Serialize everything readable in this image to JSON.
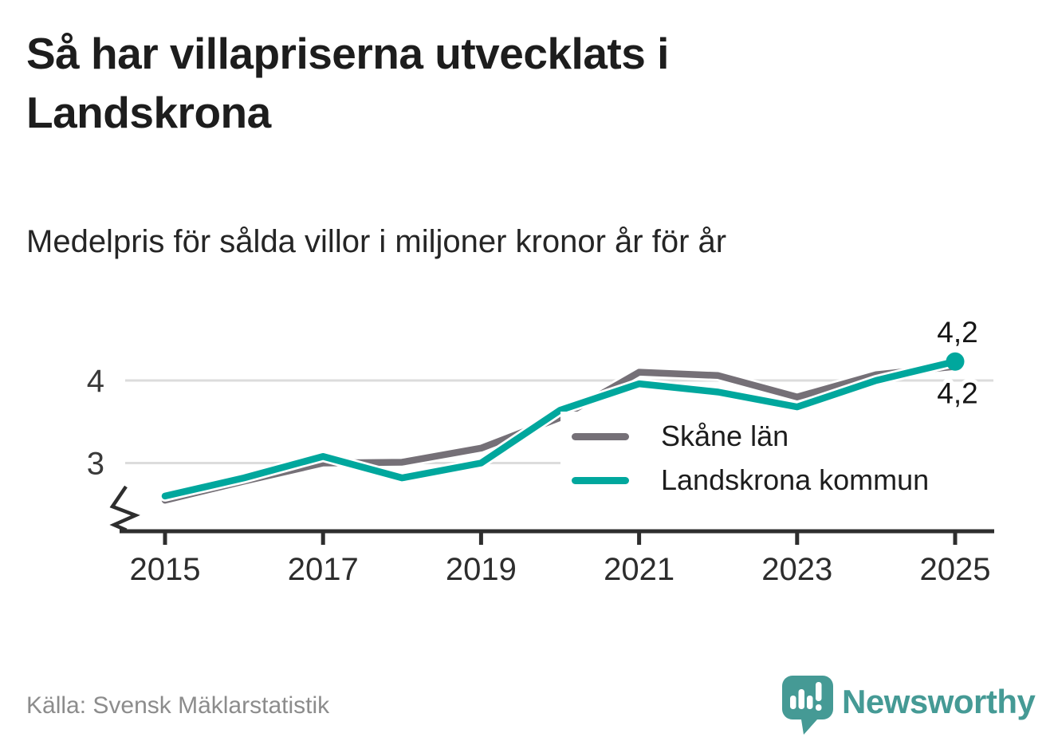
{
  "header": {
    "title": "Så har villapriserna utvecklats i Landskrona",
    "subtitle": "Medelpris för sålda villor i miljoner kronor år för år"
  },
  "chart_data": {
    "type": "line",
    "x": [
      2015,
      2016,
      2017,
      2018,
      2019,
      2020,
      2021,
      2022,
      2023,
      2024,
      2025
    ],
    "series": [
      {
        "name": "Skåne län",
        "color": "#757077",
        "values": [
          2.55,
          2.78,
          3.0,
          3.01,
          3.18,
          3.55,
          4.1,
          4.06,
          3.8,
          4.07,
          4.17
        ],
        "end_label": "4,2",
        "end_label_position": "below",
        "end_marker": false
      },
      {
        "name": "Landskrona kommun",
        "color": "#00a79d",
        "values": [
          2.6,
          2.82,
          3.08,
          2.82,
          3.0,
          3.64,
          3.96,
          3.86,
          3.68,
          4.0,
          4.23
        ],
        "end_label": "4,2",
        "end_label_position": "above",
        "end_marker": true
      }
    ],
    "xticks": [
      2015,
      2017,
      2019,
      2021,
      2023,
      2025
    ],
    "yticks": [
      3,
      4
    ],
    "axis_break": true,
    "grid": "horizontal",
    "gridline_color": "#dcdcdc",
    "axis_color": "#2e2e2e",
    "legend_position": "inside-right",
    "unit": "miljoner kronor"
  },
  "footer": {
    "source": "Källa: Svensk Mäklarstatistik",
    "brand": "Newsworthy"
  }
}
